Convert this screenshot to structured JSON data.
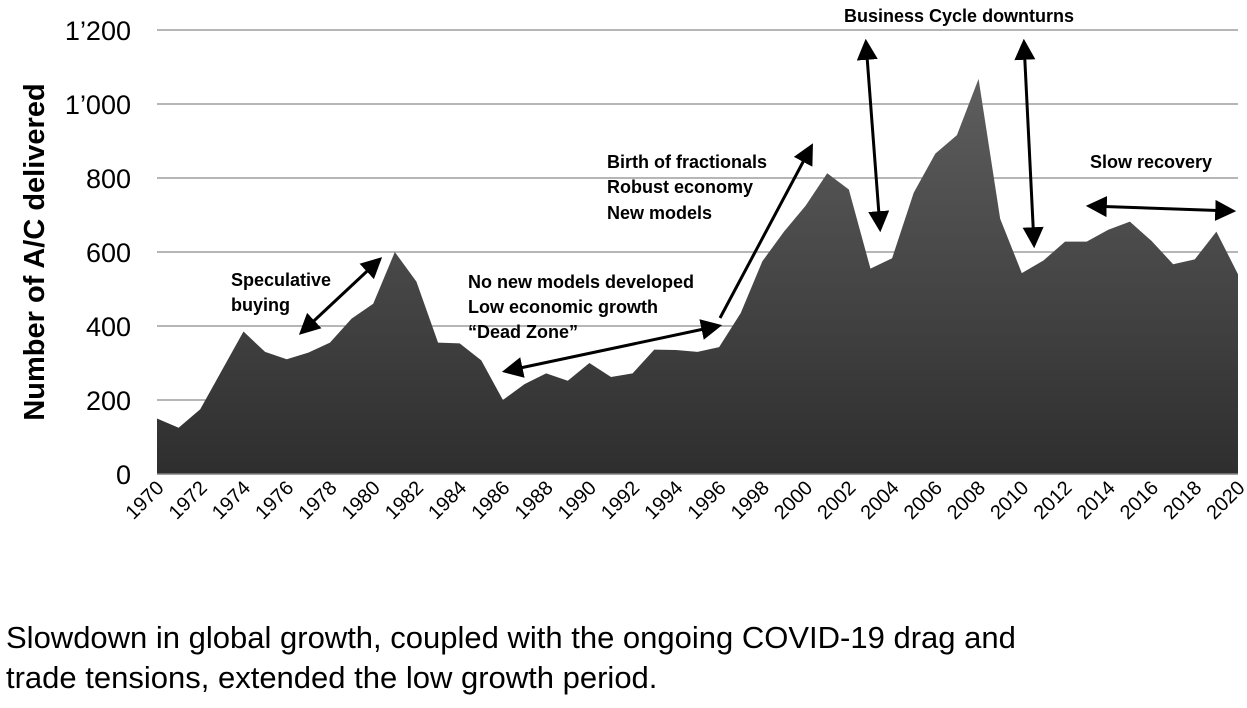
{
  "chart_data": {
    "type": "area",
    "ylabel": "Number of A/C delivered",
    "ylim": [
      0,
      1200
    ],
    "yticks": [
      0,
      200,
      400,
      600,
      800,
      1000,
      1200
    ],
    "ytick_labels": [
      "0",
      "200",
      "400",
      "600",
      "800",
      "1’000",
      "1’200"
    ],
    "xlim": [
      1970,
      2020
    ],
    "xticks": [
      1970,
      1972,
      1974,
      1976,
      1978,
      1980,
      1982,
      1984,
      1986,
      1988,
      1990,
      1992,
      1994,
      1996,
      1998,
      2000,
      2002,
      2004,
      2006,
      2008,
      2010,
      2012,
      2014,
      2016,
      2018,
      2020
    ],
    "grid": true,
    "fill_color": "#4a4a4a",
    "x": [
      1970,
      1971,
      1972,
      1973,
      1974,
      1975,
      1976,
      1977,
      1978,
      1979,
      1980,
      1981,
      1982,
      1983,
      1984,
      1985,
      1986,
      1987,
      1988,
      1989,
      1990,
      1991,
      1992,
      1993,
      1994,
      1995,
      1996,
      1997,
      1998,
      1999,
      2000,
      2001,
      2002,
      2003,
      2004,
      2005,
      2006,
      2007,
      2008,
      2009,
      2010,
      2011,
      2012,
      2013,
      2014,
      2015,
      2016,
      2017,
      2018,
      2019,
      2020
    ],
    "values": [
      150,
      125,
      175,
      280,
      385,
      330,
      310,
      328,
      355,
      420,
      460,
      600,
      520,
      355,
      353,
      307,
      200,
      243,
      272,
      252,
      300,
      262,
      272,
      336,
      335,
      330,
      343,
      435,
      575,
      655,
      725,
      813,
      769,
      555,
      583,
      760,
      866,
      916,
      1068,
      690,
      543,
      577,
      628,
      628,
      660,
      682,
      630,
      567,
      580,
      655,
      540
    ],
    "annotations": [
      {
        "lines": [
          "Speculative",
          "buying"
        ]
      },
      {
        "lines": [
          "No new models developed",
          "Low economic growth",
          "“Dead Zone”"
        ]
      },
      {
        "lines": [
          "Birth of fractionals",
          "Robust economy",
          "New models"
        ]
      },
      {
        "lines": [
          "Business Cycle downturns"
        ]
      },
      {
        "lines": [
          "Slow recovery"
        ]
      }
    ]
  },
  "caption": {
    "line1": "Slowdown in global growth, coupled with the ongoing COVID-19 drag and",
    "line2": "trade tensions, extended the low growth period."
  }
}
